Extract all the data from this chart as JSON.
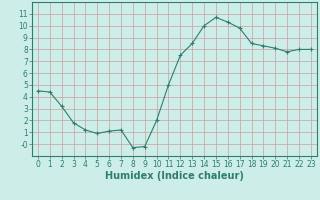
{
  "x": [
    0,
    1,
    2,
    3,
    4,
    5,
    6,
    7,
    8,
    9,
    10,
    11,
    12,
    13,
    14,
    15,
    16,
    17,
    18,
    19,
    20,
    21,
    22,
    23
  ],
  "y": [
    4.5,
    4.4,
    3.2,
    1.8,
    1.2,
    0.9,
    1.1,
    1.2,
    -0.3,
    -0.2,
    2.0,
    5.0,
    7.5,
    8.5,
    10.0,
    10.7,
    10.3,
    9.8,
    8.5,
    8.3,
    8.1,
    7.8,
    8.0,
    8.0
  ],
  "line_color": "#2e7d6e",
  "bg_color": "#cdeee8",
  "grid_color": "#c8a0a0",
  "xlabel": "Humidex (Indice chaleur)",
  "xlim": [
    -0.5,
    23.5
  ],
  "ylim": [
    -1,
    12
  ],
  "yticks": [
    0,
    1,
    2,
    3,
    4,
    5,
    6,
    7,
    8,
    9,
    10,
    11
  ],
  "xticks": [
    0,
    1,
    2,
    3,
    4,
    5,
    6,
    7,
    8,
    9,
    10,
    11,
    12,
    13,
    14,
    15,
    16,
    17,
    18,
    19,
    20,
    21,
    22,
    23
  ],
  "xlabel_fontsize": 7,
  "tick_fontsize": 5.5,
  "marker": "+"
}
